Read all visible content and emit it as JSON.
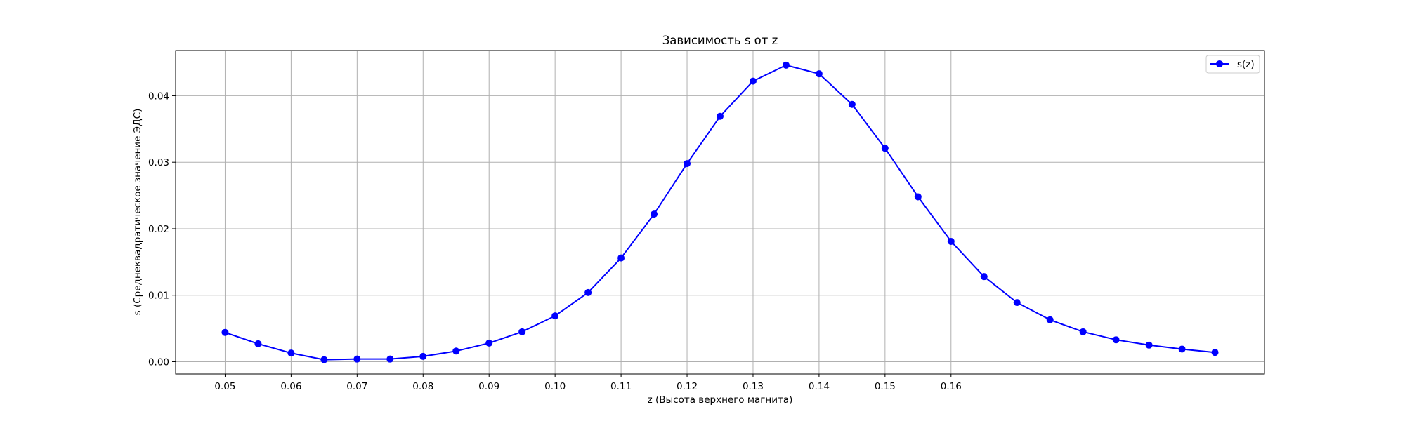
{
  "chart_data": {
    "type": "line",
    "title": "Зависимость s от z",
    "xlabel": "z (Высота верхнего магнита)",
    "ylabel": "s (Среднеквадратическое значение ЭДС)",
    "xlim": [
      0.0425,
      0.2075
    ],
    "ylim": [
      -0.00185,
      0.0468
    ],
    "xticks": [
      0.05,
      0.06,
      0.07,
      0.08,
      0.09,
      0.1,
      0.11,
      0.12,
      0.13,
      0.14,
      0.15,
      0.16
    ],
    "xtick_labels": [
      "0.05",
      "0.06",
      "0.07",
      "0.08",
      "0.09",
      "0.10",
      "0.11",
      "0.12",
      "0.13",
      "0.14",
      "0.15",
      "0.16"
    ],
    "yticks": [
      0.0,
      0.01,
      0.02,
      0.03,
      0.04
    ],
    "ytick_labels": [
      "0.00",
      "0.01",
      "0.02",
      "0.03",
      "0.04"
    ],
    "grid": true,
    "legend_position": "upper right",
    "series": [
      {
        "name": "s(z)",
        "color": "#0000ff",
        "marker": "circle",
        "x": [
          0.05,
          0.055,
          0.06,
          0.065,
          0.07,
          0.075,
          0.08,
          0.085,
          0.09,
          0.095,
          0.1,
          0.105,
          0.11,
          0.115,
          0.12,
          0.125,
          0.13,
          0.135,
          0.14,
          0.145,
          0.15,
          0.155,
          0.16,
          0.165,
          0.17,
          0.175,
          0.18,
          0.185,
          0.19,
          0.195,
          0.2
        ],
        "y": [
          0.0044,
          0.0027,
          0.0013,
          0.0003,
          0.0004,
          0.0004,
          0.0008,
          0.0016,
          0.0028,
          0.0045,
          0.0069,
          0.0104,
          0.0156,
          0.0222,
          0.0298,
          0.0369,
          0.0422,
          0.0446,
          0.0433,
          0.0387,
          0.0321,
          0.0248,
          0.0181,
          0.0128,
          0.0089,
          0.0063,
          0.0045,
          0.0033,
          0.0025,
          0.0019,
          0.0014
        ]
      }
    ]
  }
}
